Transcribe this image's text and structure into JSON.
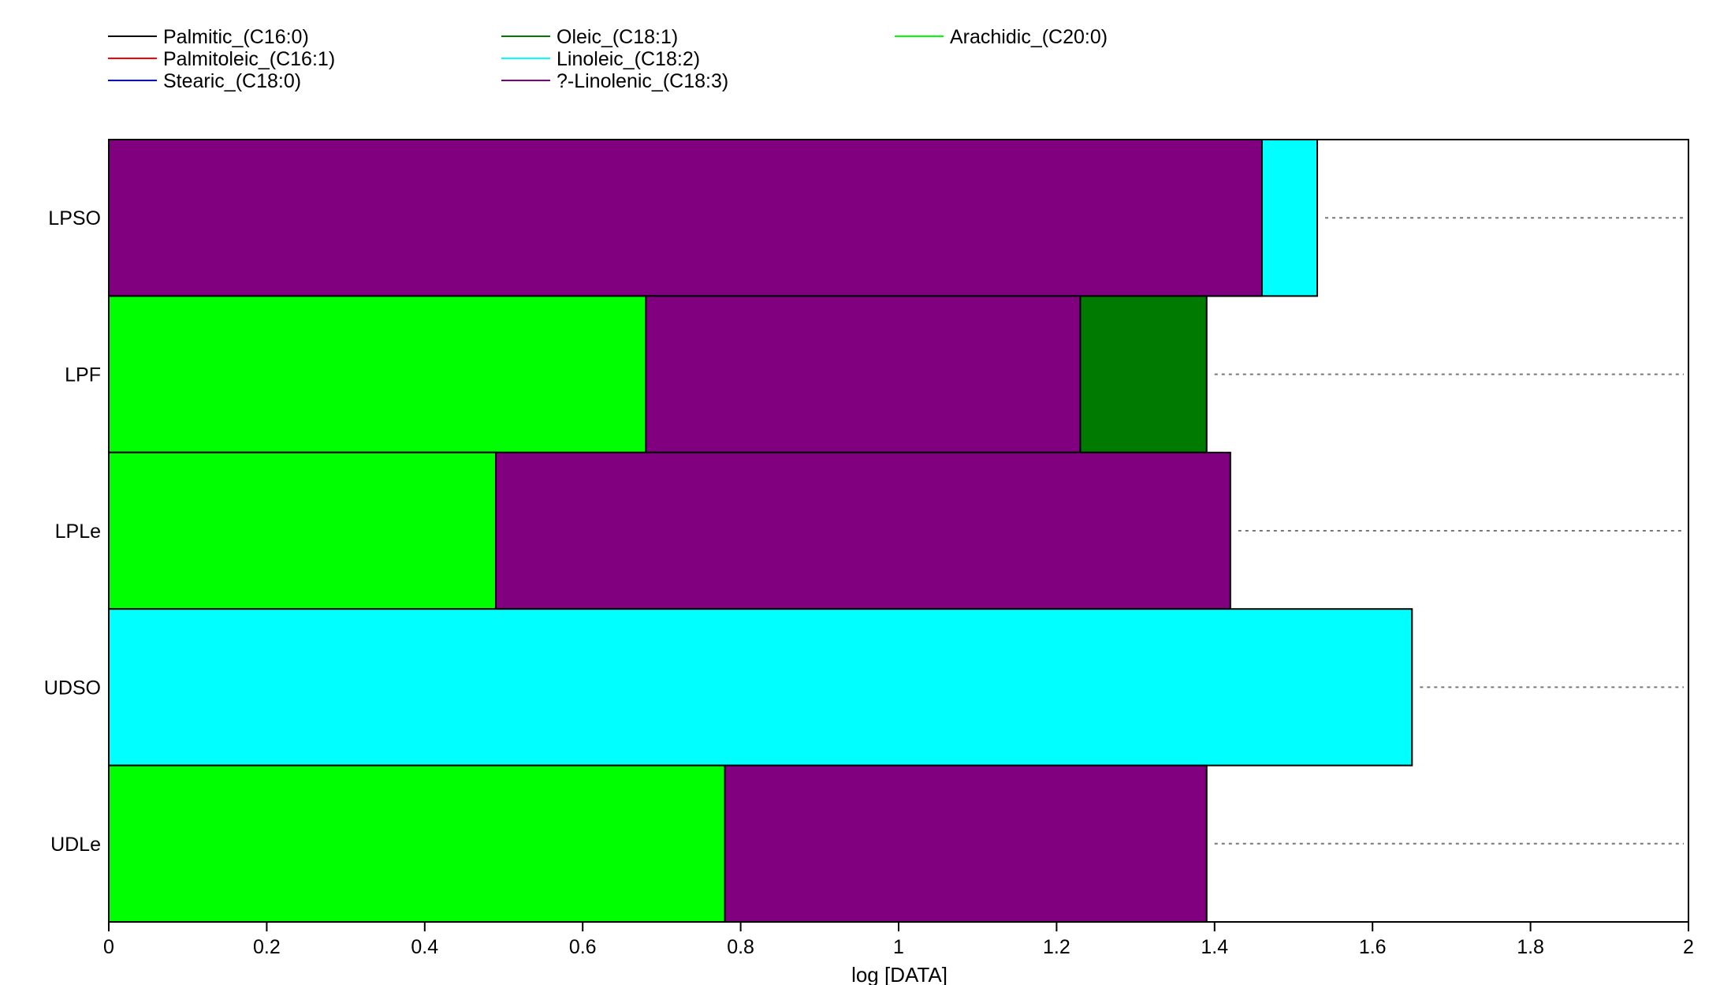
{
  "chart_data": {
    "type": "bar",
    "orientation": "horizontal",
    "stacking": "overlaid",
    "xlabel": "log [DATA]",
    "xlim": [
      0,
      2
    ],
    "xticks": [
      0,
      0.2,
      0.4,
      0.6,
      0.8,
      1,
      1.2,
      1.4,
      1.6,
      1.8,
      2
    ],
    "xtick_labels": [
      "0",
      "0.2",
      "0.4",
      "0.6",
      "0.8",
      "1",
      "1.2",
      "1.4",
      "1.6",
      "1.8",
      "2"
    ],
    "categories": [
      "LPSO",
      "LPF",
      "LPLe",
      "UDSO",
      "UDLe"
    ],
    "legend_placement": "top-left",
    "legend": [
      {
        "name": "Palmitic_(C16:0)",
        "color": "#000000"
      },
      {
        "name": "Palmitoleic_(C16:1)",
        "color": "#ff0000"
      },
      {
        "name": "Stearic_(C18:0)",
        "color": "#0000ff"
      },
      {
        "name": "Oleic_(C18:1)",
        "color": "#007a00"
      },
      {
        "name": "Linoleic_(C18:2)",
        "color": "#00ffff"
      },
      {
        "name": "?-Linolenic_(C18:3)",
        "color": "#800080"
      },
      {
        "name": "Arachidic_(C20:0)",
        "color": "#00ff00"
      }
    ],
    "series": [
      {
        "name": "Palmitic_(C16:0)",
        "values": [
          null,
          null,
          null,
          null,
          null
        ]
      },
      {
        "name": "Palmitoleic_(C16:1)",
        "values": [
          null,
          null,
          null,
          null,
          null
        ]
      },
      {
        "name": "Stearic_(C18:0)",
        "values": [
          null,
          null,
          null,
          null,
          null
        ]
      },
      {
        "name": "Oleic_(C18:1)",
        "values": [
          null,
          1.39,
          null,
          null,
          null
        ]
      },
      {
        "name": "Linoleic_(C18:2)",
        "values": [
          1.53,
          null,
          null,
          1.65,
          null
        ]
      },
      {
        "name": "?-Linolenic_(C18:3)",
        "values": [
          1.46,
          1.23,
          1.42,
          null,
          1.39
        ]
      },
      {
        "name": "Arachidic_(C20:0)",
        "values": [
          null,
          0.68,
          0.49,
          null,
          0.78
        ]
      }
    ],
    "reference_lines": "dotted-to-right-edge",
    "grid": false
  }
}
